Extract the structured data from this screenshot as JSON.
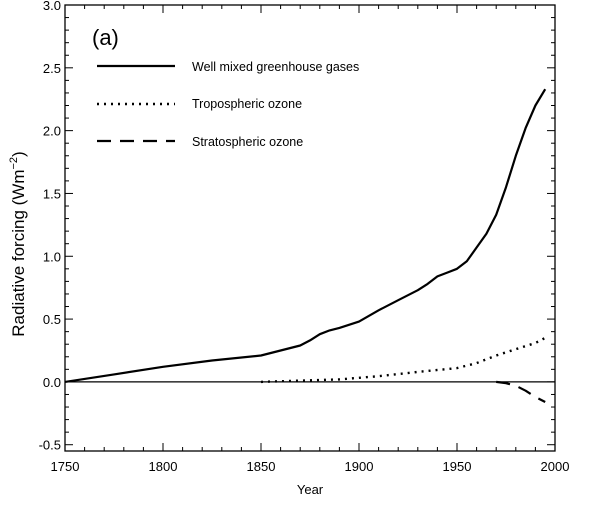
{
  "chart_data": {
    "type": "line",
    "panel_label": "(a)",
    "xlabel": "Year",
    "ylabel": "Radiative forcing (Wm",
    "ylabel_sup": "−2",
    "ylabel_close": ")",
    "xlim": [
      1750,
      2000
    ],
    "ylim": [
      -0.55,
      3.0
    ],
    "xticks": [
      1750,
      1800,
      1850,
      1900,
      1950,
      2000
    ],
    "xtick_labels": [
      "1750",
      "1800",
      "1850",
      "1900",
      "1950",
      "2000"
    ],
    "yticks": [
      -0.5,
      0.0,
      0.5,
      1.0,
      1.5,
      2.0,
      2.5,
      3.0
    ],
    "ytick_labels": [
      "-0.5",
      "0.0",
      "0.5",
      "1.0",
      "1.5",
      "2.0",
      "2.5",
      "3.0"
    ],
    "zero_line": 0,
    "legend_position": "top-left",
    "series": [
      {
        "name": "Well mixed greenhouse gases",
        "style": "solid",
        "x": [
          1750,
          1775,
          1800,
          1825,
          1850,
          1860,
          1870,
          1875,
          1880,
          1885,
          1890,
          1900,
          1910,
          1920,
          1930,
          1935,
          1940,
          1945,
          1950,
          1955,
          1960,
          1965,
          1970,
          1975,
          1980,
          1985,
          1990,
          1995
        ],
        "y": [
          0.0,
          0.06,
          0.12,
          0.17,
          0.21,
          0.25,
          0.29,
          0.33,
          0.38,
          0.41,
          0.43,
          0.48,
          0.57,
          0.65,
          0.73,
          0.78,
          0.84,
          0.87,
          0.9,
          0.96,
          1.07,
          1.18,
          1.33,
          1.55,
          1.8,
          2.02,
          2.2,
          2.33
        ]
      },
      {
        "name": "Tropospheric ozone",
        "style": "dotted",
        "x": [
          1850,
          1870,
          1890,
          1910,
          1930,
          1950,
          1960,
          1970,
          1980,
          1990,
          1995
        ],
        "y": [
          0.0,
          0.01,
          0.02,
          0.045,
          0.08,
          0.11,
          0.15,
          0.21,
          0.26,
          0.31,
          0.35
        ]
      },
      {
        "name": "Stratospheric ozone",
        "style": "dashed",
        "x": [
          1970,
          1975,
          1980,
          1985,
          1990,
          1995
        ],
        "y": [
          0.0,
          -0.01,
          -0.03,
          -0.07,
          -0.12,
          -0.16
        ]
      }
    ]
  }
}
